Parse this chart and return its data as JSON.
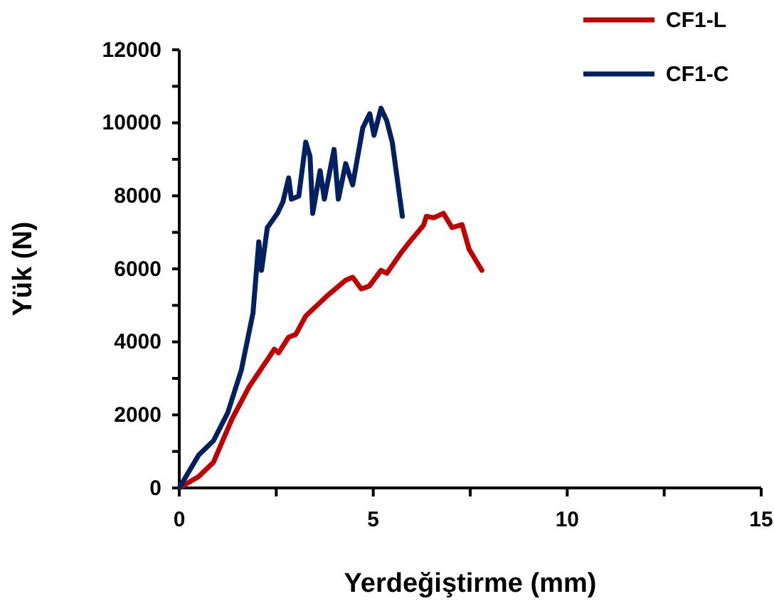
{
  "chart_data": {
    "type": "line",
    "xlabel": "Yerdeğiştirme (mm)",
    "ylabel": "Yük (N)",
    "xlim": [
      0,
      15
    ],
    "ylim": [
      0,
      12000
    ],
    "xticks": [
      0,
      {
        "value": 2.5,
        "label": null
      },
      5,
      {
        "value": 7.5,
        "label": null
      },
      10,
      {
        "value": 12.5,
        "label": null
      },
      15
    ],
    "yticks": [
      0,
      {
        "value": 1000,
        "label": null
      },
      2000,
      {
        "value": 3000,
        "label": null
      },
      4000,
      {
        "value": 5000,
        "label": null
      },
      6000,
      {
        "value": 7000,
        "label": null
      },
      8000,
      {
        "value": 9000,
        "label": null
      },
      10000,
      {
        "value": 11000,
        "label": null
      },
      12000
    ],
    "grid": false,
    "legend": "top right",
    "marker": "none",
    "line_style": "solid",
    "series": [
      {
        "name": "CF1-L",
        "color": "#c00000",
        "x": [
          0,
          0.5,
          0.88,
          1.35,
          1.8,
          2.34,
          2.45,
          2.56,
          2.82,
          3.0,
          3.26,
          3.81,
          4.29,
          4.47,
          4.69,
          4.9,
          5.2,
          5.35,
          5.71,
          6.0,
          6.3,
          6.37,
          6.56,
          6.81,
          7.03,
          7.29,
          7.47,
          7.69,
          7.8
        ],
        "values": [
          0,
          310,
          700,
          1870,
          2770,
          3620,
          3800,
          3700,
          4130,
          4200,
          4710,
          5260,
          5690,
          5770,
          5450,
          5530,
          5960,
          5880,
          6430,
          6820,
          7200,
          7440,
          7400,
          7520,
          7130,
          7210,
          6540,
          6150,
          5960
        ]
      },
      {
        "name": "CF1-C",
        "color": "#002060",
        "x": [
          0,
          0.5,
          0.88,
          1.25,
          1.6,
          1.9,
          2.05,
          2.12,
          2.27,
          2.53,
          2.67,
          2.82,
          2.89,
          3.08,
          3.26,
          3.37,
          3.44,
          3.63,
          3.74,
          3.99,
          4.1,
          4.29,
          4.47,
          4.73,
          4.91,
          5.02,
          5.2,
          5.35,
          5.49,
          5.75
        ],
        "values": [
          0,
          900,
          1290,
          2060,
          3230,
          4790,
          6740,
          5960,
          7130,
          7520,
          7830,
          8490,
          7910,
          7990,
          9470,
          9080,
          7520,
          8690,
          7910,
          9270,
          7910,
          8880,
          8300,
          9860,
          10250,
          9660,
          10400,
          10050,
          9470,
          7440
        ]
      }
    ]
  }
}
